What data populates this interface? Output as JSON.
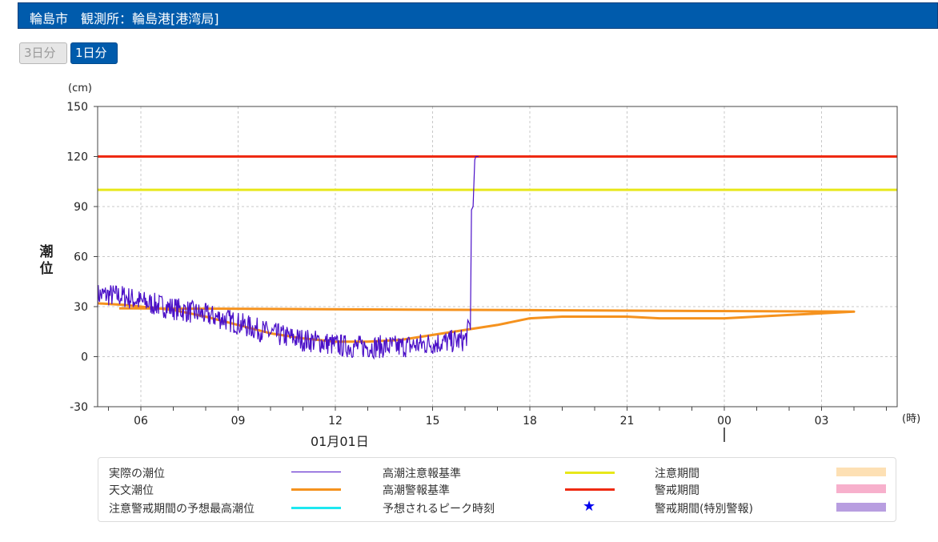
{
  "header": {
    "title": "輪島市　観測所：輪島港[港湾局]"
  },
  "tabs": [
    {
      "label": "3日分",
      "active": false
    },
    {
      "label": "1日分",
      "active": true
    }
  ],
  "chart_data": {
    "type": "line",
    "y_unit": "(cm)",
    "ylabel": "潮位",
    "ylim": [
      -30,
      150
    ],
    "y_ticks": [
      -30,
      0,
      30,
      60,
      90,
      120,
      150
    ],
    "x_unit": "(時)",
    "xlim": [
      "04:40",
      "05:20 (+1日)"
    ],
    "x_ticks": [
      "06",
      "09",
      "12",
      "15",
      "18",
      "21",
      "00",
      "03"
    ],
    "date_label": "01月01日",
    "grid": true,
    "reference_lines": [
      {
        "name": "高潮警報基準",
        "value": 120,
        "color": "#ee2a12"
      },
      {
        "name": "高潮注意報基準",
        "value": 100,
        "color": "#e8e81a"
      }
    ],
    "series": [
      {
        "name": "天文潮位",
        "color": "#f5921e",
        "x": [
          "04:40",
          "05:30",
          "06:00",
          "07:00",
          "08:00",
          "09:00",
          "10:00",
          "11:00",
          "12:00",
          "13:00",
          "14:00",
          "15:00",
          "16:00",
          "17:00",
          "18:00",
          "19:00",
          "20:00",
          "21:00",
          "22:00",
          "23:00",
          "00:00",
          "01:00",
          "02:00",
          "03:00",
          "04:00",
          "05:20"
        ],
        "values": [
          32,
          31,
          30,
          28,
          24,
          19,
          14,
          11,
          9,
          9,
          10,
          13,
          16,
          19,
          23,
          24,
          24,
          24,
          23,
          23,
          23,
          24,
          25,
          26,
          27,
          29
        ]
      },
      {
        "name": "実際の潮位",
        "color": "#4b10c8",
        "x": [
          "04:40",
          "05:00",
          "05:30",
          "06:00",
          "06:30",
          "07:00",
          "07:30",
          "08:00",
          "08:30",
          "09:00",
          "09:30",
          "10:00",
          "10:30",
          "11:00",
          "11:30",
          "12:00",
          "12:30",
          "13:00",
          "13:30",
          "14:00",
          "14:30",
          "15:00",
          "15:30",
          "16:00",
          "16:10",
          "16:12",
          "16:15",
          "16:18",
          "16:20",
          "16:25"
        ],
        "values": [
          37,
          37,
          36,
          33,
          31,
          29,
          27,
          25,
          23,
          20,
          17,
          14,
          12,
          10,
          9,
          7,
          6,
          6,
          6,
          6,
          7,
          8,
          9,
          10,
          20,
          88,
          90,
          118,
          120,
          120
        ]
      }
    ]
  },
  "legend": [
    {
      "label": "実際の潮位",
      "color": "#4b10c8",
      "kind": "thin-line"
    },
    {
      "label": "高潮注意報基準",
      "color": "#e8e81a",
      "kind": "line"
    },
    {
      "label": "注意期間",
      "color": "#fde0b4",
      "kind": "box"
    },
    {
      "label": "天文潮位",
      "color": "#f5921e",
      "kind": "line"
    },
    {
      "label": "高潮警報基準",
      "color": "#ee2a12",
      "kind": "line"
    },
    {
      "label": "警戒期間",
      "color": "#f7b0cc",
      "kind": "box"
    },
    {
      "label": "注意警戒期間の予想最高潮位",
      "color": "#1ee8f0",
      "kind": "line"
    },
    {
      "label": "予想されるピーク時刻",
      "color": "#0000ee",
      "kind": "star",
      "icon": "★"
    },
    {
      "label": "警戒期間(特別警報)",
      "color": "#b89ee0",
      "kind": "box"
    }
  ]
}
